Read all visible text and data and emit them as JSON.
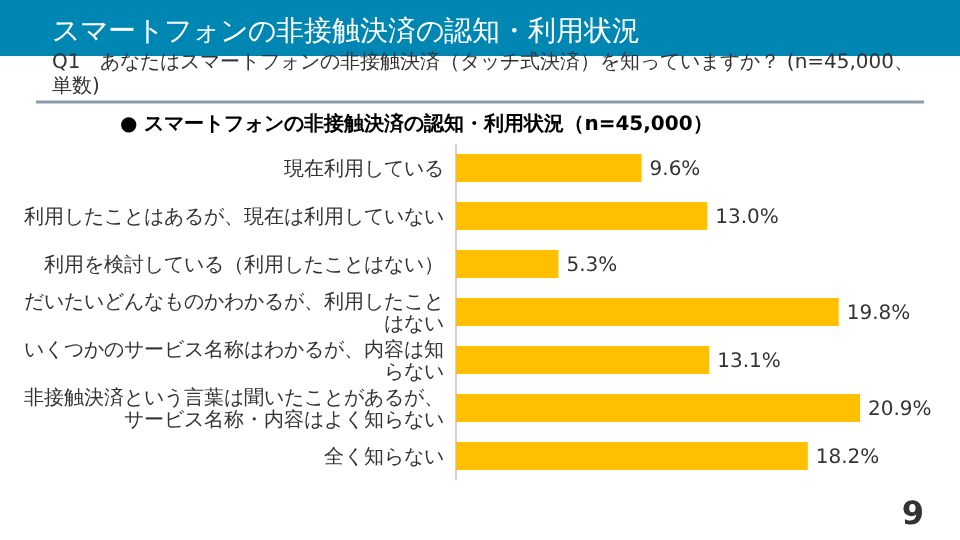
{
  "chart_data": {
    "type": "bar",
    "orientation": "horizontal",
    "title": "スマートフォンの非接触決済の認知・利用状況",
    "subtitle": "Q1　あなたはスマートフォンの非接触決済（タッチ式決済）を知っていますか？ (n=45,000、単数)",
    "annotations": [
      "● スマートフォンの非接触決済の認知・利用状況（n=45,000）",
      "9"
    ],
    "categories": [
      "現在利用している",
      "利用したことはあるが、現在は利用していない",
      "利用を検討している（利用したことはない）",
      "だいたいどんなものかわかるが、利用したことはない",
      "いくつかのサービス名称はわかるが、内容は知らない",
      "非接触決済という言葉は聞いたことがあるが、サービス名称・内容はよく知らない",
      "全く知らない"
    ],
    "values": [
      9.6,
      13.0,
      5.3,
      19.8,
      13.1,
      20.9,
      18.2
    ],
    "value_labels": [
      "9.6%",
      "13.0%",
      "5.3%",
      "19.8%",
      "13.1%",
      "20.9%",
      "18.2%"
    ],
    "color": "#ffc000"
  }
}
